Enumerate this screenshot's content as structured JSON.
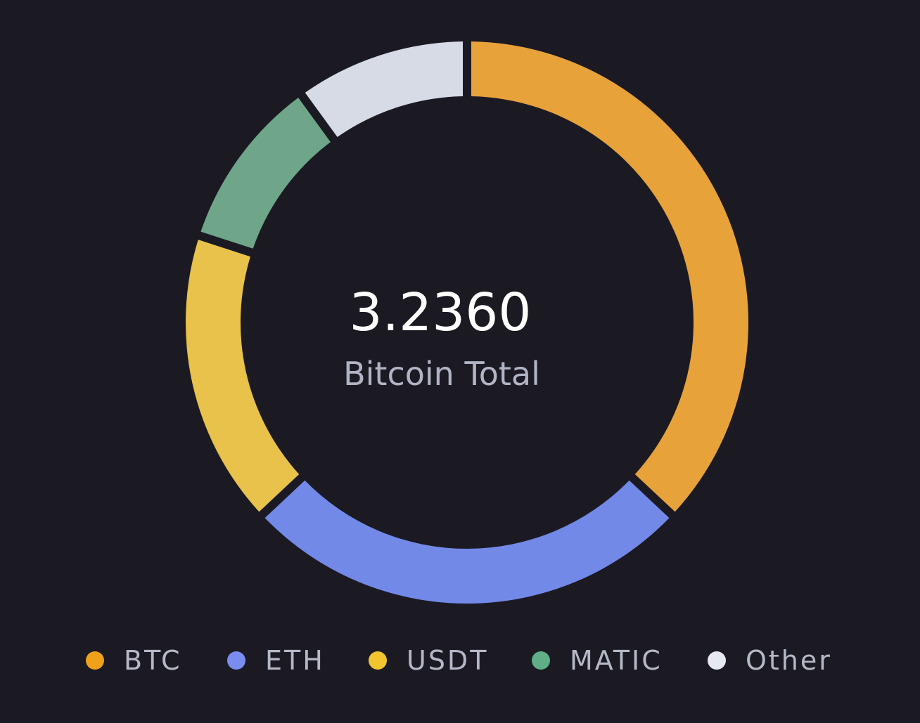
{
  "chart_data": {
    "type": "pie",
    "style": "donut",
    "center_value": "3.2360",
    "center_label": "Bitcoin Total",
    "slices": [
      {
        "label": "BTC",
        "value": 37,
        "color": "#e8a23a",
        "legend_color": "#f0a11a"
      },
      {
        "label": "ETH",
        "value": 26,
        "color": "#7389e8",
        "legend_color": "#7b8cf0"
      },
      {
        "label": "USDT",
        "value": 17,
        "color": "#e8c24a",
        "legend_color": "#f0c530"
      },
      {
        "label": "MATIC",
        "value": 10,
        "color": "#6fa68a",
        "legend_color": "#5fae88"
      },
      {
        "label": "Other",
        "value": 10,
        "color": "#d6dbe6",
        "legend_color": "#e6e9f2"
      }
    ],
    "start_angle_deg": 0,
    "direction": "clockwise",
    "legend_position": "bottom"
  }
}
